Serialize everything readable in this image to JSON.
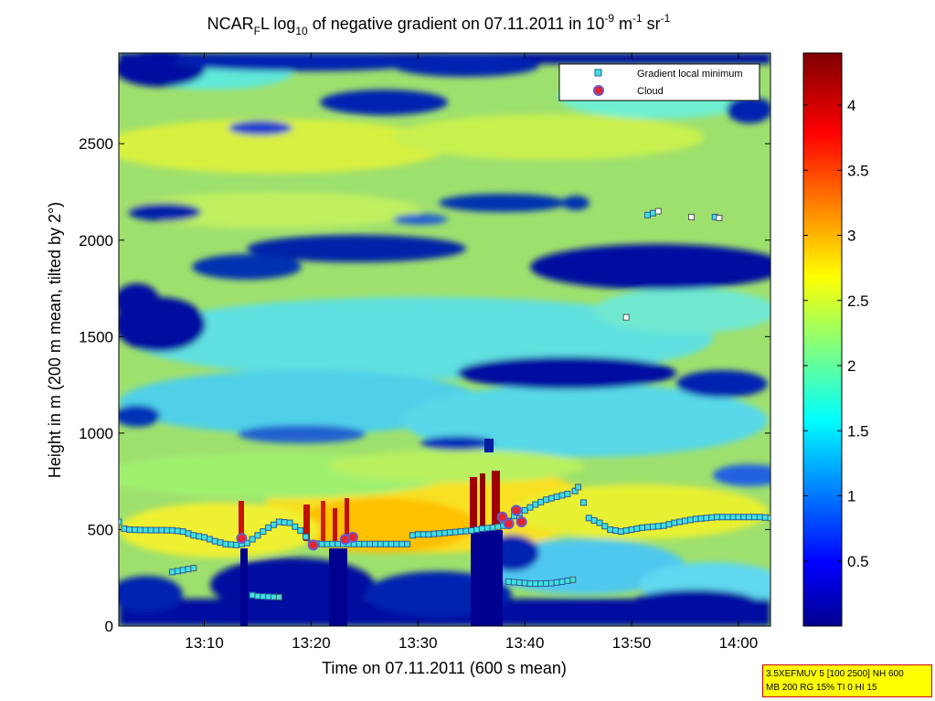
{
  "chart_data": {
    "type": "heatmap",
    "title": {
      "prefix": "NCAR",
      "prefix_sub": "F",
      "middle": "L log",
      "log_sub": "10",
      "suffix": " of negative gradient on 07.11.2011 in 10",
      "exp1": "-9",
      "unit1": " m",
      "exp2": "-1",
      "unit2": " sr",
      "exp3": "-1"
    },
    "xlabel": "Time on 07.11.2011 (600 s mean)",
    "ylabel": "Height in m (200 m mean, tilted by 2°)",
    "x_time_range_min": [
      782,
      843
    ],
    "x_ticks": [
      {
        "t": 790,
        "label": "13:10"
      },
      {
        "t": 800,
        "label": "13:20"
      },
      {
        "t": 810,
        "label": "13:30"
      },
      {
        "t": 820,
        "label": "13:40"
      },
      {
        "t": 830,
        "label": "13:50"
      },
      {
        "t": 840,
        "label": "14:00"
      }
    ],
    "ylim": [
      0,
      2970
    ],
    "y_ticks": [
      0,
      500,
      1000,
      1500,
      2000,
      2500
    ],
    "colorbar": {
      "range": [
        0,
        4.4
      ],
      "ticks": [
        0.5,
        1,
        1.5,
        2,
        2.5,
        3,
        3.5,
        4
      ],
      "tick_labels": [
        "0.5",
        "1",
        "1.5",
        "2",
        "2.5",
        "3",
        "3.5",
        "4"
      ],
      "colormap": "jet"
    },
    "legend_position": "top-right",
    "series": [
      {
        "name": "Gradient local minimum",
        "marker": "square",
        "color": "#40e0e0",
        "segments": [
          [
            [
              782.0,
              540
            ],
            [
              782.5,
              505
            ],
            [
              783,
              500
            ],
            [
              784,
              498
            ],
            [
              785,
              497
            ],
            [
              786,
              497
            ],
            [
              787,
              496
            ],
            [
              788,
              490
            ],
            [
              789,
              470
            ],
            [
              790,
              460
            ],
            [
              791,
              440
            ],
            [
              792,
              425
            ],
            [
              793,
              420
            ],
            [
              794,
              430
            ],
            [
              795,
              470
            ],
            [
              796,
              510
            ],
            [
              797,
              540
            ],
            [
              798,
              535
            ],
            [
              799,
              495
            ],
            [
              800,
              430
            ],
            [
              801,
              425
            ],
            [
              802,
              425
            ],
            [
              803,
              425
            ],
            [
              804,
              425
            ],
            [
              805,
              425
            ],
            [
              806,
              425
            ],
            [
              807,
              425
            ],
            [
              808,
              425
            ],
            [
              809,
              425
            ],
            [
              809.5,
              470
            ],
            [
              810,
              475
            ],
            [
              811,
              475
            ],
            [
              812,
              480
            ],
            [
              813,
              485
            ],
            [
              814,
              490
            ],
            [
              815,
              495
            ],
            [
              816,
              505
            ],
            [
              817,
              510
            ],
            [
              817.5,
              515
            ]
          ],
          [
            [
              818,
              520
            ],
            [
              819,
              570
            ],
            [
              820,
              600
            ],
            [
              821,
              630
            ],
            [
              822,
              655
            ],
            [
              823,
              670
            ],
            [
              824,
              685
            ],
            [
              824.7,
              700
            ],
            [
              825,
              720
            ]
          ],
          [
            [
              825.5,
              640
            ],
            [
              826,
              560
            ],
            [
              827,
              535
            ],
            [
              828,
              500
            ],
            [
              829,
              490
            ],
            [
              830,
              500
            ],
            [
              831,
              510
            ],
            [
              832,
              515
            ],
            [
              833,
              520
            ],
            [
              834,
              535
            ],
            [
              835,
              545
            ],
            [
              836,
              555
            ],
            [
              837,
              560
            ],
            [
              838,
              565
            ],
            [
              839,
              565
            ],
            [
              840,
              565
            ],
            [
              841,
              565
            ],
            [
              842,
              565
            ],
            [
              843,
              560
            ]
          ],
          [
            [
              787,
              280
            ],
            [
              788,
              290
            ],
            [
              789,
              300
            ]
          ],
          [
            [
              794.5,
              160
            ],
            [
              795,
              155
            ],
            [
              796,
              152
            ],
            [
              797,
              150
            ]
          ],
          [
            [
              818.5,
              230
            ],
            [
              819.5,
              225
            ],
            [
              820.5,
              220
            ],
            [
              821.5,
              220
            ],
            [
              822.5,
              222
            ],
            [
              823.5,
              230
            ],
            [
              824.5,
              240
            ]
          ],
          [
            [
              831.5,
              2130
            ],
            [
              832,
              2140
            ],
            [
              832.5,
              2150
            ]
          ],
          [
            [
              835.6,
              2120
            ]
          ],
          [
            [
              837.8,
              2120
            ],
            [
              838.2,
              2115
            ]
          ],
          [
            [
              829.5,
              1600
            ]
          ]
        ]
      },
      {
        "name": "Cloud",
        "marker": "circle",
        "color": "#e8242a",
        "points": [
          [
            793.5,
            455
          ],
          [
            800.2,
            420
          ],
          [
            803.2,
            450
          ],
          [
            803.9,
            460
          ],
          [
            817.9,
            565
          ],
          [
            818.5,
            530
          ],
          [
            819.2,
            600
          ],
          [
            819.7,
            540
          ]
        ]
      }
    ],
    "annotation_lines": [
      "3.5XEFMUV 5 [100 2500] NH 600",
      "MB 200 RG 15% TI 0 HI 15"
    ]
  }
}
